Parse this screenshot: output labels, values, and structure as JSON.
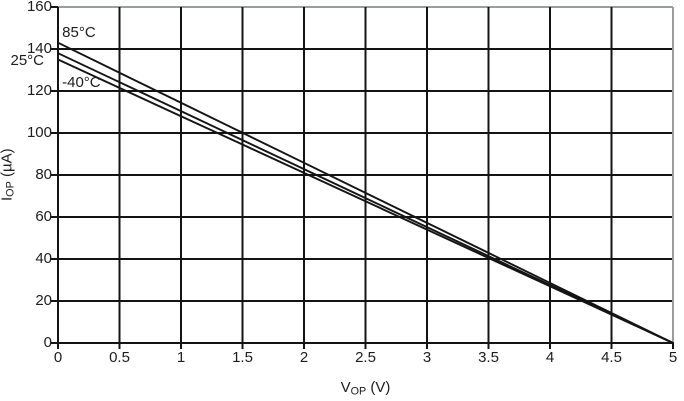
{
  "chart_data": {
    "type": "line",
    "title": "",
    "xlabel": {
      "base": "V",
      "sub": "OP",
      "unit": " (V)"
    },
    "ylabel": {
      "base": "I",
      "sub": "OP",
      "unit": " (µA)"
    },
    "xlim": [
      0,
      5
    ],
    "ylim": [
      0,
      160
    ],
    "grid": true,
    "legend_position": "inline-labels",
    "x_ticks": [
      0,
      0.5,
      1,
      1.5,
      2,
      2.5,
      3,
      3.5,
      4,
      4.5,
      5
    ],
    "x_tick_labels": [
      "0",
      "0.5",
      "1",
      "1.5",
      "2",
      "2.5",
      "3",
      "3.5",
      "4",
      "4.5",
      "5"
    ],
    "y_ticks": [
      0,
      20,
      40,
      60,
      80,
      100,
      120,
      140,
      160
    ],
    "y_tick_labels": [
      "0",
      "20",
      "40",
      "60",
      "80",
      "100",
      "120",
      "140",
      "160"
    ],
    "x": [
      0,
      0.5,
      1,
      1.5,
      2,
      2.5,
      3,
      3.5,
      4,
      4.5,
      5
    ],
    "series": [
      {
        "name": "85°C",
        "values": [
          143,
          128.7,
          114.4,
          100.1,
          85.8,
          71.5,
          57.2,
          42.9,
          28.6,
          14.3,
          0
        ],
        "label_anchor": {
          "x": 0.17,
          "y": 147.5
        }
      },
      {
        "name": "25°C",
        "values": [
          138,
          124.2,
          110.4,
          96.6,
          82.8,
          69.0,
          55.2,
          41.4,
          27.6,
          13.8,
          0
        ],
        "label_anchor": {
          "x": -0.25,
          "y": 134.5
        }
      },
      {
        "name": "-40°C",
        "values": [
          135,
          121.5,
          108,
          94.5,
          81,
          67.5,
          54,
          40.5,
          27,
          13.5,
          0
        ],
        "label_anchor": {
          "x": 0.19,
          "y": 124
        }
      }
    ],
    "colors": {
      "series": "#141414",
      "grid": "#141414",
      "frame_secondary": "#9a9da0",
      "text": "#1d1d1d"
    }
  }
}
